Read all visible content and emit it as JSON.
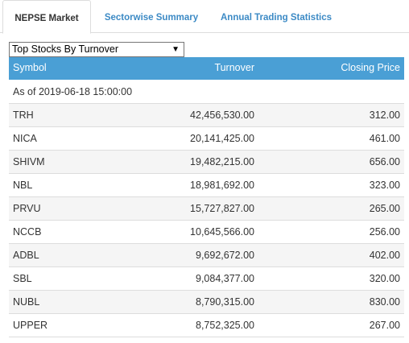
{
  "tabs": [
    {
      "label": "NEPSE Market",
      "active": true
    },
    {
      "label": "Sectorwise Summary",
      "active": false
    },
    {
      "label": "Annual Trading Statistics",
      "active": false
    }
  ],
  "select": {
    "value": "Top Stocks By Turnover",
    "icon": "caret-down-icon"
  },
  "table": {
    "headers": {
      "symbol": "Symbol",
      "turnover": "Turnover",
      "closing_price": "Closing Price"
    },
    "as_of": "As of 2019-06-18 15:00:00",
    "rows": [
      {
        "symbol": "TRH",
        "turnover": "42,456,530.00",
        "closing_price": "312.00"
      },
      {
        "symbol": "NICA",
        "turnover": "20,141,425.00",
        "closing_price": "461.00"
      },
      {
        "symbol": "SHIVM",
        "turnover": "19,482,215.00",
        "closing_price": "656.00"
      },
      {
        "symbol": "NBL",
        "turnover": "18,981,692.00",
        "closing_price": "323.00"
      },
      {
        "symbol": "PRVU",
        "turnover": "15,727,827.00",
        "closing_price": "265.00"
      },
      {
        "symbol": "NCCB",
        "turnover": "10,645,566.00",
        "closing_price": "256.00"
      },
      {
        "symbol": "ADBL",
        "turnover": "9,692,672.00",
        "closing_price": "402.00"
      },
      {
        "symbol": "SBL",
        "turnover": "9,084,377.00",
        "closing_price": "320.00"
      },
      {
        "symbol": "NUBL",
        "turnover": "8,790,315.00",
        "closing_price": "830.00"
      },
      {
        "symbol": "UPPER",
        "turnover": "8,752,325.00",
        "closing_price": "267.00"
      }
    ]
  },
  "colors": {
    "header_bg": "#4a9fd5",
    "tab_link": "#3c8ac5",
    "stripe": "#f5f5f5"
  }
}
